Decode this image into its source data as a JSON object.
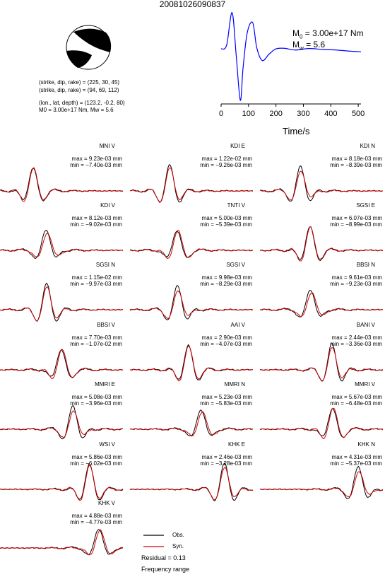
{
  "title": "20081026090837",
  "params": {
    "line1": "(strike, dip, rake) = (225, 30, 45)",
    "line2": "(strike, dip, rake) = (94, 69, 112)",
    "line3": "(lon., lat, depth) = (123.2, -0.2, 80)",
    "line4": "M0 = 3.00e+17 Nm, Mw = 5.6"
  },
  "stf": {
    "m0_label": "M",
    "m0_sub": "0",
    "m0_value": " = 3.00e+17 Nm",
    "mw_label": "M",
    "mw_sub": "w",
    "mw_value": " = 5.6",
    "xlabel": "Time/s"
  },
  "legend": {
    "obs": "Obs.",
    "syn": "Syn."
  },
  "residual": "Residual = 0.13",
  "frequency": "Frequency range",
  "colors": {
    "obs": "#000000",
    "syn": "#d40000",
    "stf": "#0000ff"
  },
  "chart_data": [
    {
      "type": "line",
      "x": [
        0,
        20,
        40,
        55,
        70,
        80,
        95,
        115,
        130,
        150,
        175,
        200,
        230,
        270,
        320,
        370,
        420,
        470,
        510
      ],
      "series": [
        {
          "values": [
            0.3,
            0.9,
            6.5,
            -0.8,
            -8.5,
            -3.0,
            3.0,
            4.8,
            0.5,
            -1.7,
            -0.6,
            0.3,
            0.4,
            0.1,
            0.35,
            0.2,
            0.1,
            -0.1,
            -0.2
          ]
        }
      ],
      "xlim": [
        0,
        510
      ],
      "xticks": [
        "0",
        "100",
        "200",
        "300",
        "400",
        "500"
      ],
      "xlabel": "Time/s"
    },
    {
      "type": "line",
      "panels": [
        {
          "station": "MNI V",
          "max": "max = 9.23e-03 mm",
          "min": "min = −7.40e-03 mm"
        },
        {
          "station": "KDI E",
          "max": "max = 1.22e-02 mm",
          "min": "min = −9.26e-03 mm"
        },
        {
          "station": "KDI N",
          "max": "max = 8.18e-03 mm",
          "min": "min = −8.39e-03 mm"
        },
        {
          "station": "KDI V",
          "max": "max = 8.12e-03 mm",
          "min": "min = −9.02e-03 mm"
        },
        {
          "station": "TNTI V",
          "max": "max = 5.00e-03 mm",
          "min": "min = −5.39e-03 mm"
        },
        {
          "station": "SGSI E",
          "max": "max = 6.07e-03 mm",
          "min": "min = −8.99e-03 mm"
        },
        {
          "station": "SGSI N",
          "max": "max = 1.15e-02 mm",
          "min": "min = −9.97e-03 mm"
        },
        {
          "station": "SGSI V",
          "max": "max = 9.98e-03 mm",
          "min": "min = −8.29e-03 mm"
        },
        {
          "station": "BBSI N",
          "max": "max = 9.61e-03 mm",
          "min": "min = −9.23e-03 mm"
        },
        {
          "station": "BBSI V",
          "max": "max = 7.70e-03 mm",
          "min": "min = −1.07e-02 mm"
        },
        {
          "station": "AAI V",
          "max": "max = 2.90e-03 mm",
          "min": "min = −4.07e-03 mm"
        },
        {
          "station": "BANI V",
          "max": "max = 2.44e-03 mm",
          "min": "min = −3.36e-03 mm"
        },
        {
          "station": "MMRI E",
          "max": "max = 5.08e-03 mm",
          "min": "min = −3.96e-03 mm"
        },
        {
          "station": "MMRI N",
          "max": "max = 5.23e-03 mm",
          "min": "min = −5.83e-03 mm"
        },
        {
          "station": "MMRI V",
          "max": "max = 5.67e-03 mm",
          "min": "min = −6.48e-03 mm"
        },
        {
          "station": "WSI V",
          "max": "max = 5.86e-03 mm",
          "min": "min = −6.02e-03 mm"
        },
        {
          "station": "KHK E",
          "max": "max = 2.46e-03 mm",
          "min": "min = −3.28e-03 mm"
        },
        {
          "station": "KHK N",
          "max": "max = 4.31e-03 mm",
          "min": "min = −5.37e-03 mm"
        },
        {
          "station": "KHK V",
          "max": "max = 4.88e-03 mm",
          "min": "min = −4.77e-03 mm"
        }
      ]
    }
  ]
}
